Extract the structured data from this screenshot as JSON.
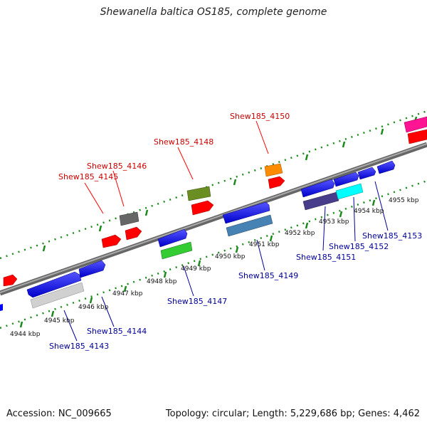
{
  "title": "Shewanella baltica OS185, complete genome",
  "footer": {
    "accession": "Accession: NC_009665",
    "summary": "Topology: circular; Length: 5,229,686 bp; Genes: 4,462"
  },
  "colors": {
    "backbone": "#888888",
    "tick": "#1a8a1a",
    "forward_label": "#cc0000",
    "reverse_label": "#000099"
  },
  "ticks": [
    "4944 kbp",
    "4945 kbp",
    "4946 kbp",
    "4947 kbp",
    "4948 kbp",
    "4949 kbp",
    "4950 kbp",
    "4951 kbp",
    "4952 kbp",
    "4953 kbp",
    "4954 kbp",
    "4955 kbp"
  ],
  "labels": {
    "forward": [
      "Shew185_4145",
      "Shew185_4146",
      "Shew185_4148",
      "Shew185_4150"
    ],
    "reverse": [
      "Shew185_4143",
      "Shew185_4144",
      "Shew185_4147",
      "Shew185_4149",
      "Shew185_4151",
      "Shew185_4152",
      "Shew185_4153"
    ]
  }
}
